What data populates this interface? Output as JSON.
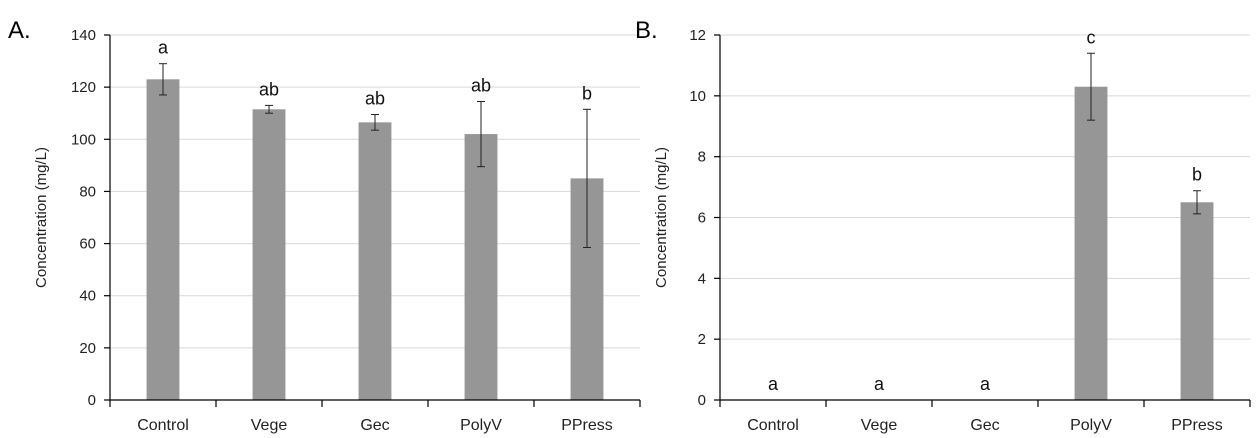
{
  "colors": {
    "bar": "#969696",
    "grid": "#d9d9d9",
    "axis": "#000000"
  },
  "chart_data": [
    {
      "type": "bar",
      "panel_label": "A.",
      "categories": [
        "Control",
        "Vege",
        "Gec",
        "PolyV",
        "PPress"
      ],
      "values": [
        123,
        111.5,
        106.5,
        102,
        85
      ],
      "errors": [
        6,
        1.5,
        3,
        12.5,
        26.5
      ],
      "significance": [
        "a",
        "ab",
        "ab",
        "ab",
        "b"
      ],
      "ylabel": "Concentration (mg/L)",
      "ylim": [
        0,
        140
      ],
      "yticks": [
        0,
        20,
        40,
        60,
        80,
        100,
        120,
        140
      ],
      "grid": true
    },
    {
      "type": "bar",
      "panel_label": "B.",
      "categories": [
        "Control",
        "Vege",
        "Gec",
        "PolyV",
        "PPress"
      ],
      "values": [
        0,
        0,
        0,
        10.3,
        6.5
      ],
      "errors": [
        0,
        0,
        0,
        1.1,
        0.38
      ],
      "significance": [
        "a",
        "a",
        "a",
        "c",
        "b"
      ],
      "ylabel": "Concentration (mg/L)",
      "ylim": [
        0,
        12
      ],
      "yticks": [
        0,
        2,
        4,
        6,
        8,
        10,
        12
      ],
      "grid": true
    }
  ]
}
